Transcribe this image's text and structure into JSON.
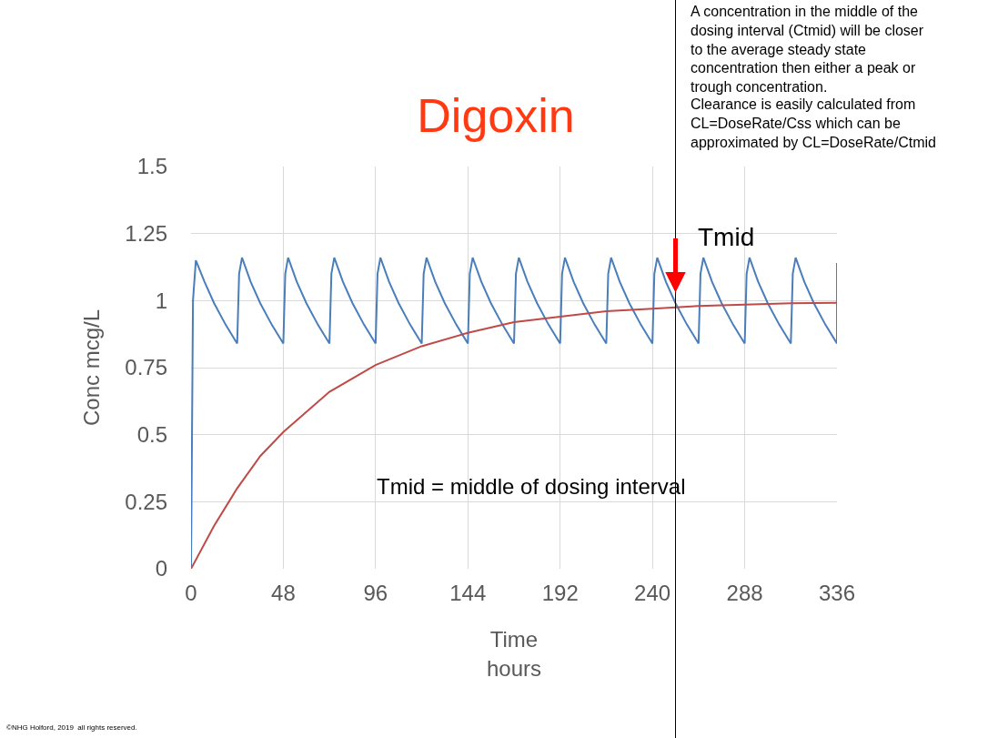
{
  "chart_data": {
    "type": "line",
    "title": "Digoxin",
    "xlabel": "Time\nhours",
    "ylabel": "Conc mcg/L",
    "xlim": [
      0,
      336
    ],
    "xticks": [
      0,
      48,
      96,
      144,
      192,
      240,
      288,
      336
    ],
    "ylim": [
      0,
      1.5
    ],
    "yticks": [
      0,
      0.25,
      0.5,
      0.75,
      1,
      1.25,
      1.5
    ],
    "grid": true,
    "marker": "none",
    "line_style": "solid",
    "series": [
      {
        "color": "#4a7ebb",
        "x": [
          0,
          1,
          2.5,
          7,
          12,
          18,
          24,
          25,
          26.5,
          31,
          36,
          42,
          48,
          49,
          50.5,
          55,
          60,
          66,
          72,
          73,
          74.5,
          79,
          84,
          90,
          96,
          97,
          98.5,
          103,
          108,
          114,
          120,
          121,
          122.5,
          127,
          132,
          138,
          144,
          145,
          146.5,
          151,
          156,
          162,
          168,
          169,
          170.5,
          175,
          180,
          186,
          192,
          193,
          194.5,
          199,
          204,
          210,
          216,
          217,
          218.5,
          223,
          228,
          234,
          240,
          241,
          242.5,
          247,
          252,
          258,
          264,
          265,
          266.5,
          271,
          276,
          282,
          288,
          289,
          290.5,
          295,
          300,
          306,
          312,
          313,
          314.5,
          319,
          324,
          330,
          336,
          336
        ],
        "values": [
          0,
          1.0,
          1.15,
          1.07,
          0.99,
          0.91,
          0.84,
          1.1,
          1.16,
          1.07,
          0.99,
          0.91,
          0.84,
          1.1,
          1.16,
          1.07,
          0.99,
          0.91,
          0.84,
          1.1,
          1.16,
          1.07,
          0.99,
          0.91,
          0.84,
          1.1,
          1.16,
          1.07,
          0.99,
          0.91,
          0.84,
          1.1,
          1.16,
          1.07,
          0.99,
          0.91,
          0.84,
          1.1,
          1.16,
          1.07,
          0.99,
          0.91,
          0.84,
          1.1,
          1.16,
          1.07,
          0.99,
          0.91,
          0.84,
          1.1,
          1.16,
          1.07,
          0.99,
          0.91,
          0.84,
          1.1,
          1.16,
          1.07,
          0.99,
          0.91,
          0.84,
          1.1,
          1.16,
          1.07,
          0.99,
          0.91,
          0.84,
          1.1,
          1.16,
          1.07,
          0.99,
          0.91,
          0.84,
          1.1,
          1.16,
          1.07,
          0.99,
          0.91,
          0.84,
          1.1,
          1.16,
          1.07,
          0.99,
          0.91,
          0.84,
          1.14
        ]
      },
      {
        "color": "#be4b48",
        "x": [
          0,
          12,
          24,
          36,
          48,
          72,
          96,
          120,
          144,
          168,
          192,
          216,
          240,
          264,
          288,
          312,
          336
        ],
        "values": [
          0,
          0.16,
          0.3,
          0.42,
          0.51,
          0.66,
          0.76,
          0.83,
          0.88,
          0.92,
          0.94,
          0.96,
          0.97,
          0.98,
          0.985,
          0.99,
          0.992
        ]
      }
    ],
    "ref_lines": [
      {
        "axis": "x",
        "value": 252,
        "label": "Tmid",
        "color": "#000000"
      }
    ],
    "annotations": [
      "A concentration in the middle of the dosing interval (Ctmid) will be closer to the average steady state concentration then either a peak or trough concentration.",
      "Clearance is easily calculated from CL=DoseRate/Css which can be approximated by CL=DoseRate/Ctmid",
      "Tmid = middle of dosing interval",
      "©NHG Holford, 2019  all rights reserved."
    ]
  }
}
